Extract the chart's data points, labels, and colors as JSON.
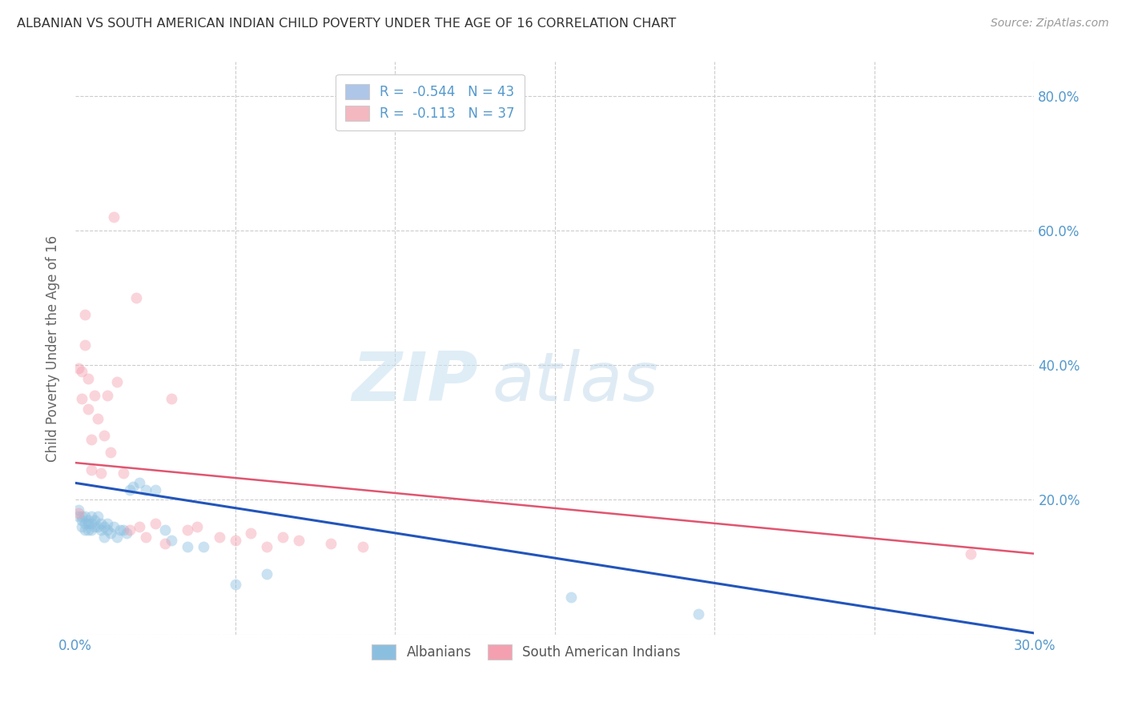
{
  "title": "ALBANIAN VS SOUTH AMERICAN INDIAN CHILD POVERTY UNDER THE AGE OF 16 CORRELATION CHART",
  "source": "Source: ZipAtlas.com",
  "ylabel": "Child Poverty Under the Age of 16",
  "xlim": [
    0.0,
    0.3
  ],
  "ylim": [
    0.0,
    0.85
  ],
  "xticks": [
    0.0,
    0.05,
    0.1,
    0.15,
    0.2,
    0.25,
    0.3
  ],
  "xticklabels": [
    "0.0%",
    "",
    "",
    "",
    "",
    "",
    "30.0%"
  ],
  "yticks": [
    0.0,
    0.2,
    0.4,
    0.6,
    0.8
  ],
  "yticklabels": [
    "",
    "20.0%",
    "40.0%",
    "60.0%",
    "80.0%"
  ],
  "legend_entries": [
    {
      "label": "R =  -0.544   N = 43",
      "color": "#aec6e8"
    },
    {
      "label": "R =  -0.113   N = 37",
      "color": "#f4b8c1"
    }
  ],
  "legend_labels": [
    "Albanians",
    "South American Indians"
  ],
  "watermark_zip": "ZIP",
  "watermark_atlas": "atlas",
  "albanian_x": [
    0.001,
    0.001,
    0.002,
    0.002,
    0.002,
    0.003,
    0.003,
    0.003,
    0.004,
    0.004,
    0.004,
    0.005,
    0.005,
    0.005,
    0.006,
    0.006,
    0.007,
    0.007,
    0.008,
    0.008,
    0.009,
    0.009,
    0.01,
    0.01,
    0.011,
    0.012,
    0.013,
    0.014,
    0.015,
    0.016,
    0.017,
    0.018,
    0.02,
    0.022,
    0.025,
    0.028,
    0.03,
    0.035,
    0.04,
    0.05,
    0.06,
    0.155,
    0.195
  ],
  "albanian_y": [
    0.175,
    0.185,
    0.17,
    0.16,
    0.175,
    0.165,
    0.155,
    0.175,
    0.17,
    0.165,
    0.155,
    0.165,
    0.175,
    0.155,
    0.16,
    0.17,
    0.16,
    0.175,
    0.155,
    0.165,
    0.16,
    0.145,
    0.165,
    0.155,
    0.15,
    0.16,
    0.145,
    0.155,
    0.155,
    0.15,
    0.215,
    0.22,
    0.225,
    0.215,
    0.215,
    0.155,
    0.14,
    0.13,
    0.13,
    0.075,
    0.09,
    0.055,
    0.03
  ],
  "sai_x": [
    0.001,
    0.001,
    0.002,
    0.002,
    0.003,
    0.003,
    0.004,
    0.004,
    0.005,
    0.005,
    0.006,
    0.007,
    0.008,
    0.009,
    0.01,
    0.011,
    0.012,
    0.013,
    0.015,
    0.017,
    0.019,
    0.02,
    0.022,
    0.025,
    0.028,
    0.03,
    0.035,
    0.038,
    0.045,
    0.05,
    0.055,
    0.06,
    0.065,
    0.07,
    0.08,
    0.09,
    0.28
  ],
  "sai_y": [
    0.18,
    0.395,
    0.35,
    0.39,
    0.43,
    0.475,
    0.38,
    0.335,
    0.245,
    0.29,
    0.355,
    0.32,
    0.24,
    0.295,
    0.355,
    0.27,
    0.62,
    0.375,
    0.24,
    0.155,
    0.5,
    0.16,
    0.145,
    0.165,
    0.135,
    0.35,
    0.155,
    0.16,
    0.145,
    0.14,
    0.15,
    0.13,
    0.145,
    0.14,
    0.135,
    0.13,
    0.12
  ],
  "albanian_color": "#8bbfe0",
  "sai_color": "#f4a0b0",
  "albanian_line_color": "#2255bb",
  "sai_line_color": "#e05570",
  "background_color": "#ffffff",
  "grid_color": "#cccccc",
  "title_color": "#333333",
  "axis_color": "#5599cc",
  "marker_size": 100,
  "marker_alpha": 0.45,
  "alb_line_start_y": 0.225,
  "alb_line_end_y": 0.002,
  "sai_line_start_y": 0.255,
  "sai_line_end_y": 0.12
}
